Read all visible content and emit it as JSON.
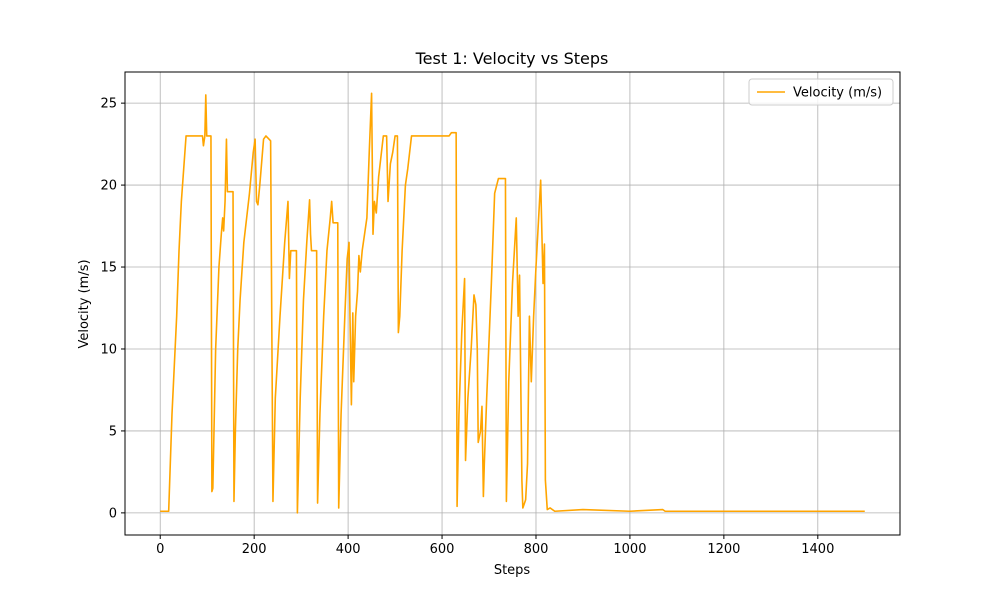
{
  "chart_data": {
    "type": "line",
    "title": "Test 1: Velocity vs Steps",
    "xlabel": "Steps",
    "ylabel": "Velocity (m/s)",
    "x": [
      0,
      18,
      25,
      35,
      40,
      45,
      55,
      60,
      90,
      92,
      95,
      97,
      99,
      108,
      110,
      112,
      118,
      125,
      130,
      133,
      135,
      138,
      141,
      143,
      155,
      157,
      160,
      165,
      170,
      178,
      190,
      198,
      202,
      205,
      208,
      212,
      220,
      225,
      235,
      240,
      245,
      255,
      265,
      272,
      275,
      278,
      290,
      292,
      298,
      305,
      312,
      318,
      320,
      322,
      333,
      335,
      340,
      348,
      355,
      362,
      365,
      368,
      378,
      380,
      385,
      393,
      398,
      402,
      404,
      407,
      410,
      412,
      416,
      420,
      423,
      426,
      430,
      440,
      445,
      450,
      453,
      456,
      460,
      465,
      475,
      482,
      485,
      490,
      495,
      500,
      505,
      507,
      510,
      515,
      522,
      527,
      535,
      560,
      600,
      615,
      620,
      630,
      632,
      636,
      642,
      648,
      650,
      655,
      662,
      668,
      672,
      675,
      677,
      682,
      685,
      688,
      690,
      695,
      705,
      712,
      720,
      735,
      737,
      742,
      750,
      758,
      762,
      765,
      770,
      772,
      778,
      782,
      786,
      790,
      795,
      800,
      810,
      815,
      818,
      820,
      824,
      830,
      840,
      900,
      1000,
      1070,
      1075,
      1500
    ],
    "series": [
      {
        "name": "Velocity (m/s)",
        "color": "#ffa500",
        "values": [
          0.1,
          0.1,
          6,
          12,
          16,
          19,
          23,
          23,
          23,
          22.4,
          23,
          25.5,
          23,
          23,
          1.3,
          1.5,
          10,
          15,
          17,
          18,
          17.2,
          19,
          22.8,
          19.6,
          19.6,
          0.7,
          5,
          10,
          13,
          16.5,
          19.5,
          22,
          22.8,
          19,
          18.8,
          20,
          22.8,
          23,
          22.7,
          0.7,
          7,
          12,
          16.5,
          19,
          14.3,
          16,
          16,
          0,
          7,
          13,
          16.5,
          19.1,
          17,
          16,
          16,
          0.6,
          6,
          12,
          16,
          18,
          19,
          17.7,
          17.7,
          0.3,
          6,
          12,
          15.5,
          16.5,
          12,
          6.6,
          12.2,
          8,
          12,
          13.5,
          15.7,
          14.7,
          16,
          18,
          22,
          25.6,
          17,
          19,
          18.3,
          20.5,
          23,
          23,
          19,
          21.3,
          22,
          23,
          23,
          11,
          12,
          16,
          20,
          21,
          23,
          23,
          23,
          23,
          23.2,
          23.2,
          0.4,
          6,
          11,
          14.3,
          3.2,
          7,
          10,
          13.3,
          12.7,
          10,
          4.3,
          5,
          6.5,
          1,
          3,
          7,
          14,
          19.5,
          20.4,
          20.4,
          0.7,
          8,
          14,
          18,
          12,
          14.5,
          2,
          0.3,
          0.8,
          3,
          12,
          8,
          12,
          15,
          20.3,
          14,
          16.4,
          2,
          0.2,
          0.3,
          0.1,
          0.2,
          0.1,
          0.2,
          0.1,
          0.1
        ]
      }
    ],
    "xlim": [
      -75,
      1575
    ],
    "ylim": [
      -1.35,
      26.9
    ],
    "xticks": [
      0,
      200,
      400,
      600,
      800,
      1000,
      1200,
      1400
    ],
    "yticks": [
      0,
      5,
      10,
      15,
      20,
      25
    ],
    "grid": true,
    "legend": "upper right"
  }
}
